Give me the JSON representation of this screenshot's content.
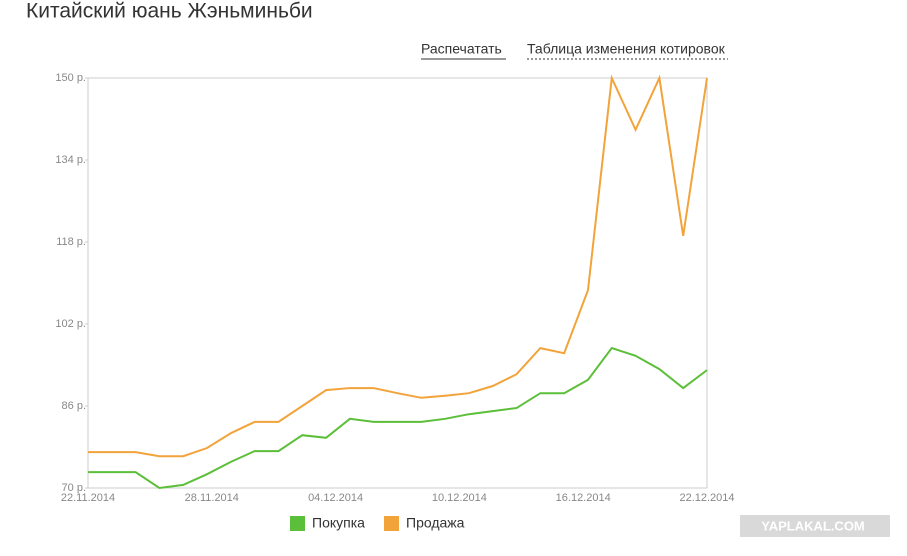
{
  "header": {
    "title": "Китайский юань Жэньминьби",
    "links": [
      "Распечатать",
      "Таблица изменения котировок"
    ]
  },
  "chart_data": {
    "type": "line",
    "xticks": [
      "22.11.2014",
      "28.11.2014",
      "04.12.2014",
      "10.12.2014",
      "16.12.2014",
      "22.12.2014"
    ],
    "ylim": [
      70,
      150
    ],
    "yticks": [
      {
        "value": 70,
        "label": "70 р."
      },
      {
        "value": 86,
        "label": "86 р."
      },
      {
        "value": 102,
        "label": "102 р."
      },
      {
        "value": 118,
        "label": "118 р."
      },
      {
        "value": 134,
        "label": "134 р."
      },
      {
        "value": 150,
        "label": "150 р."
      }
    ],
    "series": [
      {
        "name": "Покупка",
        "color": "#5cbf3a",
        "values": [
          73.1,
          73.1,
          73.1,
          70,
          70.6,
          72.7,
          75.1,
          77.2,
          77.2,
          80.3,
          79.8,
          83.5,
          82.9,
          82.9,
          82.9,
          83.5,
          84.4,
          85.0,
          85.6,
          88.5,
          88.5,
          91.1,
          97.3,
          95.8,
          93.2,
          89.5,
          93.0
        ]
      },
      {
        "name": "Продажа",
        "color": "#f2a33a",
        "values": [
          77.0,
          77.0,
          77.0,
          76.2,
          76.2,
          77.8,
          80.7,
          82.9,
          82.9,
          86.0,
          89.1,
          89.5,
          89.5,
          88.5,
          87.6,
          88.0,
          88.5,
          89.9,
          92.2,
          97.3,
          96.3,
          108.6,
          150,
          139.9,
          150,
          119.2,
          150
        ]
      }
    ]
  },
  "watermark": "YAPLAKAL.COM"
}
